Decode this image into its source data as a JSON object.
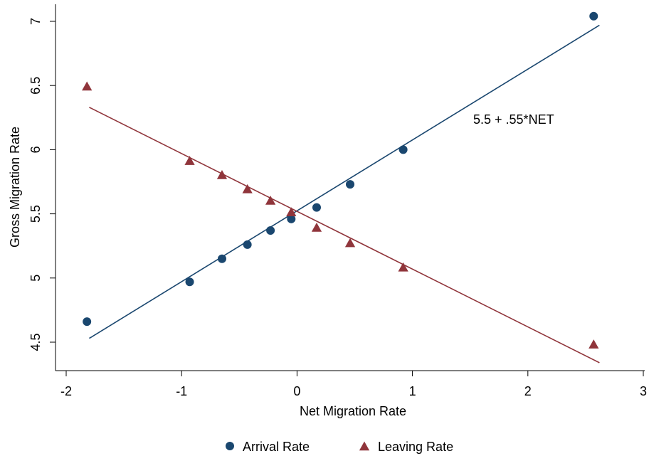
{
  "chart_data": {
    "type": "scatter",
    "xlabel": "Net Migration Rate",
    "ylabel": "Gross Migration Rate",
    "xlim": [
      -2,
      3
    ],
    "ylim": [
      4.3,
      7.1
    ],
    "x_ticks": [
      -2,
      -1,
      0,
      1,
      2,
      3
    ],
    "y_ticks": [
      4.5,
      5,
      5.5,
      6,
      6.5,
      7
    ],
    "x_tick_labels": [
      "-2",
      "-1",
      "0",
      "1",
      "2",
      "3"
    ],
    "y_tick_labels": [
      "4.5",
      "5",
      "5.5",
      "6",
      "6.5",
      "7"
    ],
    "grid": false,
    "legend_position": "bottom",
    "annotation": "5.5 + .55*NET",
    "series": [
      {
        "name": "Arrival Rate",
        "marker": "circle",
        "color": "#1a476f",
        "x": [
          -1.82,
          -0.93,
          -0.65,
          -0.43,
          -0.23,
          -0.05,
          0.17,
          0.46,
          0.92,
          2.57
        ],
        "y": [
          4.66,
          4.97,
          5.15,
          5.26,
          5.37,
          5.46,
          5.55,
          5.73,
          6.0,
          7.04
        ]
      },
      {
        "name": "Leaving Rate",
        "marker": "triangle",
        "color": "#90353b",
        "x": [
          -1.82,
          -0.93,
          -0.65,
          -0.43,
          -0.23,
          -0.05,
          0.17,
          0.46,
          0.92,
          2.57
        ],
        "y": [
          6.49,
          5.91,
          5.8,
          5.69,
          5.6,
          5.51,
          5.39,
          5.27,
          5.08,
          4.48
        ]
      }
    ],
    "fit_lines": [
      {
        "series": "Arrival Rate",
        "x": [
          -1.8,
          2.62
        ],
        "y": [
          4.53,
          6.97
        ]
      },
      {
        "series": "Leaving Rate",
        "x": [
          -1.8,
          2.62
        ],
        "y": [
          6.33,
          4.34
        ]
      }
    ]
  }
}
